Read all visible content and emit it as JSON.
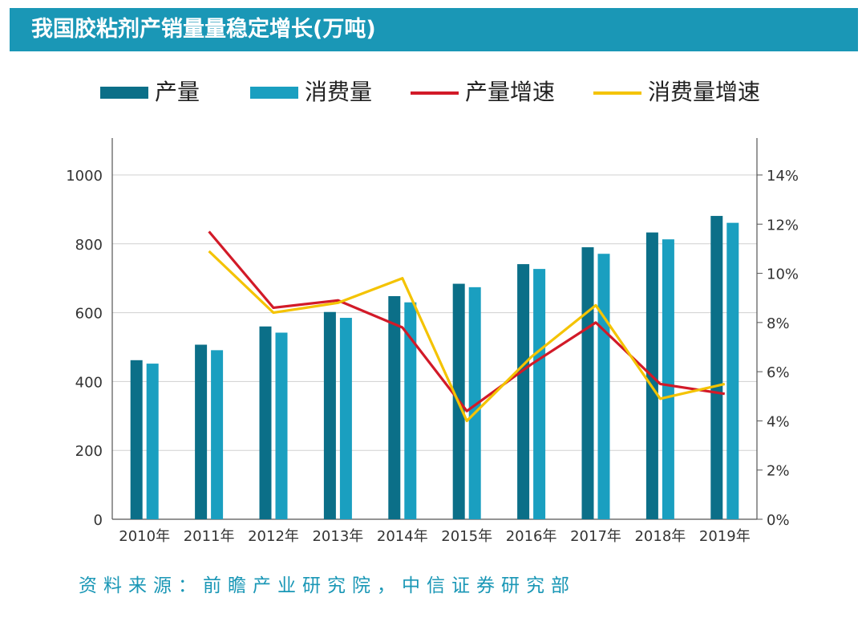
{
  "title": "我国胶粘剂产销量量稳定增长(万吨)",
  "legend": [
    {
      "label": "产量",
      "kind": "bar",
      "color": "#0b6f88"
    },
    {
      "label": "消费量",
      "kind": "bar",
      "color": "#1a9fc0"
    },
    {
      "label": "产量增速",
      "kind": "line",
      "color": "#d21a28"
    },
    {
      "label": "消费量增速",
      "kind": "line",
      "color": "#f4c300"
    }
  ],
  "source": "资料来源：前瞻产业研究院，中信证券研究部",
  "chart_data": {
    "type": "bar",
    "categories": [
      "2010年",
      "2011年",
      "2012年",
      "2013年",
      "2014年",
      "2015年",
      "2016年",
      "2017年",
      "2018年",
      "2019年"
    ],
    "series": [
      {
        "name": "产量",
        "type": "bar",
        "axis": "left",
        "color": "#0b6f88",
        "values": [
          462,
          507,
          560,
          602,
          648,
          684,
          741,
          790,
          833,
          881
        ]
      },
      {
        "name": "消费量",
        "type": "bar",
        "axis": "left",
        "color": "#1a9fc0",
        "values": [
          452,
          491,
          542,
          585,
          630,
          674,
          727,
          771,
          813,
          861
        ]
      },
      {
        "name": "产量增速",
        "type": "line",
        "axis": "right",
        "color": "#d21a28",
        "values": [
          null,
          11.7,
          8.6,
          8.9,
          7.8,
          4.4,
          6.3,
          8.0,
          5.5,
          5.1
        ]
      },
      {
        "name": "消费量增速",
        "type": "line",
        "axis": "right",
        "color": "#f4c300",
        "values": [
          null,
          10.9,
          8.4,
          8.8,
          9.8,
          4.0,
          6.6,
          8.7,
          4.9,
          5.5
        ]
      }
    ],
    "y_left": {
      "min": 0,
      "max": 1000,
      "ticks": [
        "0",
        "200",
        "400",
        "600",
        "800",
        "1000"
      ]
    },
    "y_right": {
      "min": 0,
      "max": 14,
      "ticks": [
        "0%",
        "2%",
        "4%",
        "6%",
        "8%",
        "10%",
        "12%",
        "14%"
      ]
    },
    "grid": true
  }
}
